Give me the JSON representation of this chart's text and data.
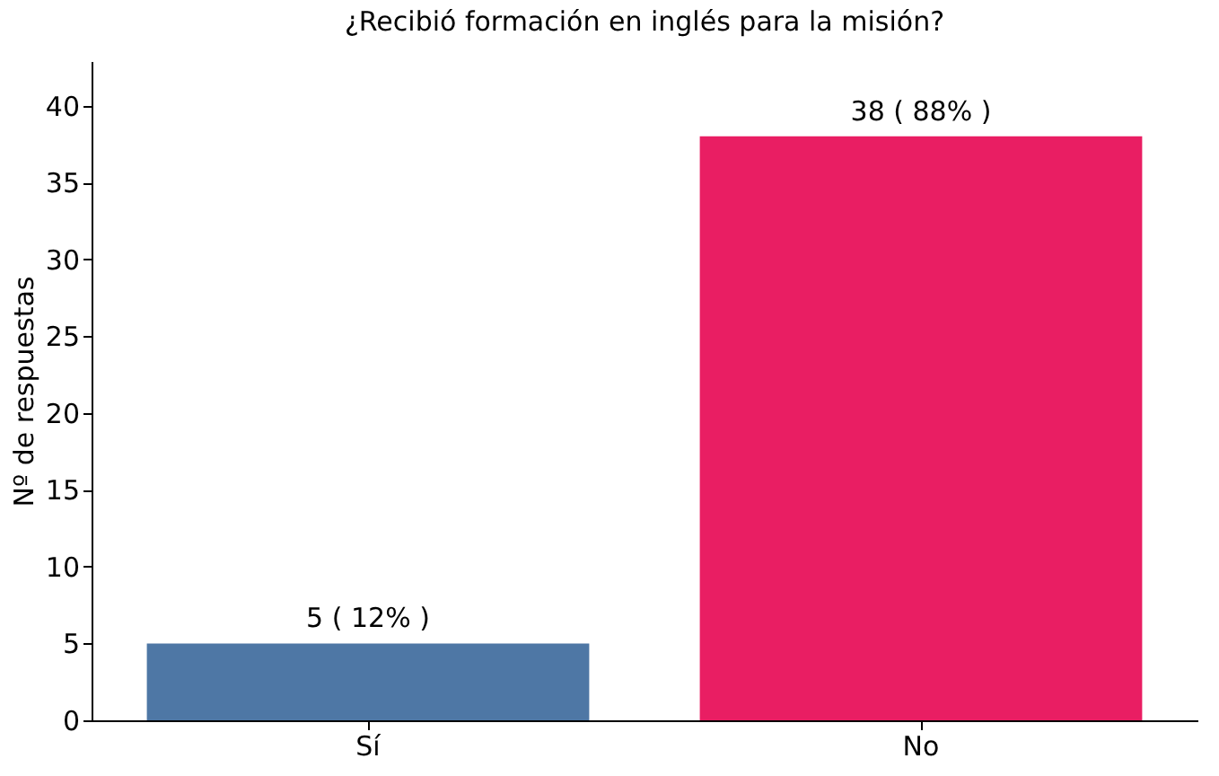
{
  "chart_data": {
    "type": "bar",
    "title": "¿Recibió formación en inglés para la misión?",
    "ylabel": "Nº de respuestas",
    "categories": [
      "Sí",
      "No"
    ],
    "values": [
      5,
      38
    ],
    "colors": [
      "#4e77a5",
      "#e91e63"
    ],
    "value_labels": [
      "5 ( 12% )",
      "38 ( 88% )"
    ],
    "ylim": [
      0,
      42.9
    ],
    "yticks": [
      0,
      5,
      10,
      15,
      20,
      25,
      30,
      35,
      40
    ],
    "grid": false
  }
}
